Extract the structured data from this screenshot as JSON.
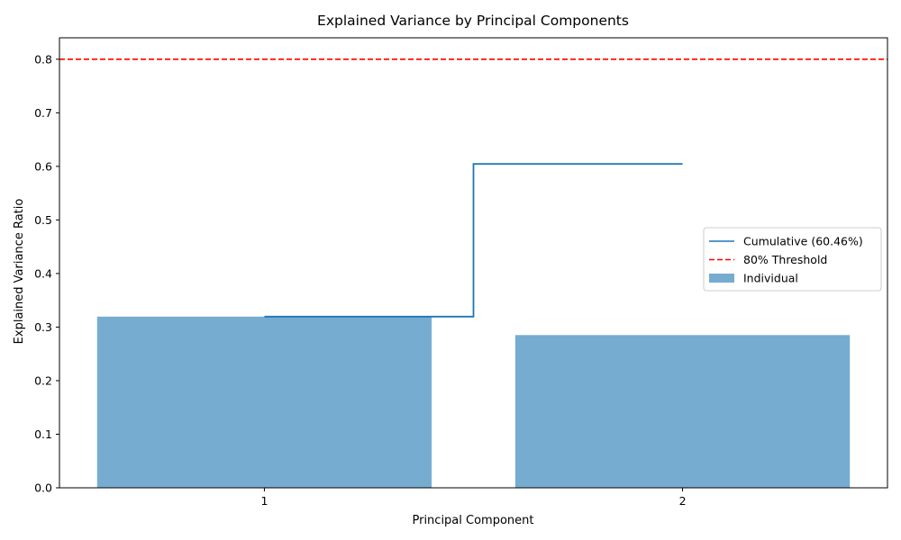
{
  "chart_data": {
    "type": "bar",
    "title": "Explained Variance by Principal Components",
    "xlabel": "Principal Component",
    "ylabel": "Explained Variance Ratio",
    "categories": [
      "1",
      "2"
    ],
    "ylim": [
      0,
      0.84
    ],
    "yticks": [
      "0.0",
      "0.1",
      "0.2",
      "0.3",
      "0.4",
      "0.5",
      "0.6",
      "0.7",
      "0.8"
    ],
    "grid": false,
    "legend_position": "center-right",
    "series": [
      {
        "name": "Individual",
        "kind": "bar",
        "values": [
          0.3195,
          0.2851
        ],
        "color": "#77acd1"
      },
      {
        "name": "Cumulative (60.46%)",
        "kind": "step",
        "values": [
          0.3195,
          0.6046
        ],
        "color": "#1f77b4"
      }
    ],
    "reference_lines": [
      {
        "name": "80% Threshold",
        "y": 0.8,
        "color": "#ff0000",
        "style": "dashed"
      }
    ]
  }
}
